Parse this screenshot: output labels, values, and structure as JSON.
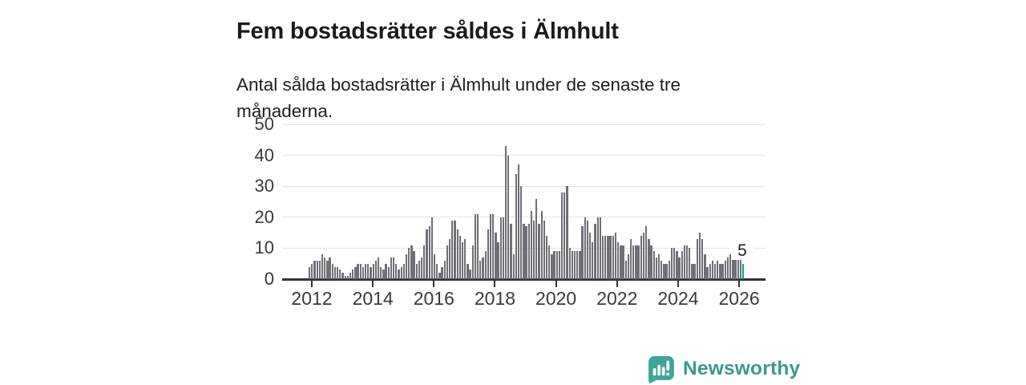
{
  "header": {
    "title": "Fem bostadsrätter såldes i Älmhult",
    "subtitle": "Antal sålda bostadsrätter i Älmhult under de senaste tre månaderna."
  },
  "chart_data": {
    "type": "bar",
    "title": "Fem bostadsrätter såldes i Älmhult",
    "xlabel": "",
    "ylabel": "",
    "ylim": [
      0,
      50
    ],
    "y_ticks": [
      0,
      10,
      20,
      30,
      40,
      50
    ],
    "x_tick_labels": [
      "2012",
      "2014",
      "2016",
      "2018",
      "2020",
      "2022",
      "2024",
      "2026"
    ],
    "grid": true,
    "legend": "none",
    "frequency": "monthly",
    "x_start": "2012-01",
    "x_end": "2026-03",
    "series": [
      {
        "name": "Antal sålda bostadsrätter (rullande tre månader)",
        "values": [
          4,
          5,
          6,
          6,
          6,
          8,
          7,
          6,
          7,
          5,
          4,
          4,
          3,
          2,
          1,
          1,
          2,
          3,
          4,
          5,
          5,
          4,
          5,
          5,
          4,
          5,
          6,
          7,
          4,
          3,
          5,
          4,
          7,
          7,
          5,
          3,
          4,
          5,
          8,
          10,
          11,
          9,
          5,
          6,
          7,
          11,
          16,
          17,
          20,
          8,
          5,
          2,
          4,
          6,
          11,
          13,
          19,
          19,
          16,
          14,
          12,
          13,
          5,
          3,
          11,
          21,
          21,
          6,
          7,
          9,
          16,
          21,
          21,
          15,
          12,
          20,
          20,
          43,
          40,
          18,
          8,
          34,
          37,
          30,
          18,
          17,
          18,
          22,
          19,
          26,
          18,
          22,
          19,
          14,
          11,
          8,
          9,
          9,
          9,
          28,
          28,
          30,
          10,
          9,
          9,
          9,
          9,
          17,
          20,
          19,
          15,
          12,
          18,
          20,
          20,
          14,
          14,
          14,
          14,
          14,
          15,
          12,
          11,
          11,
          6,
          8,
          13,
          11,
          11,
          11,
          14,
          15,
          17,
          13,
          11,
          9,
          7,
          8,
          6,
          5,
          5,
          6,
          10,
          10,
          9,
          7,
          9,
          11,
          11,
          10,
          5,
          5,
          13,
          15,
          13,
          8,
          4,
          5,
          6,
          5,
          6,
          5,
          5,
          6,
          7,
          8,
          11,
          11,
          10,
          7,
          5
        ]
      }
    ],
    "highlight": {
      "index": 170,
      "value": 5,
      "label": "5"
    },
    "bar_color": "#6d7076",
    "highlight_color": "#00a49c"
  },
  "footer": {
    "brand": "Newsworthy"
  },
  "colors": {
    "accent_teal": "#3aa096",
    "axis_text": "#3a3a3a",
    "grid_line": "#e3e3e3",
    "axis_line": "#333333",
    "title_text": "#1b1b18"
  },
  "icons": {
    "logo_icon": "newsworthy-speech-bubble-bar-chart-icon"
  }
}
